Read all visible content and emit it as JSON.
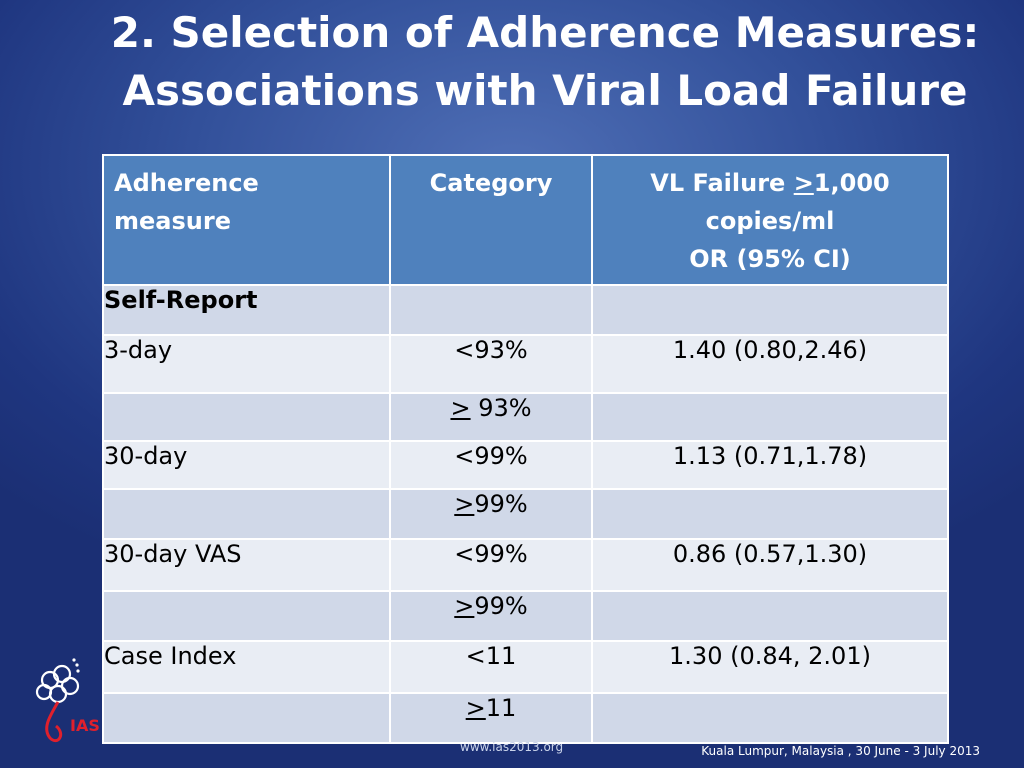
{
  "title": {
    "line1": "2. Selection of Adherence Measures:",
    "line2": "Associations with Viral Load Failure"
  },
  "table": {
    "headers": {
      "measure_l1": "Adherence",
      "measure_l2": "measure",
      "category": "Category",
      "vl_prefix": "VL Failure ",
      "vl_symbol": ">",
      "vl_value": "1,000",
      "vl_l2": "copies/ml",
      "vl_l3": "OR (95% CI)"
    },
    "section": "Self-Report",
    "rows": [
      {
        "measure": "3-day",
        "category": "<93%",
        "or": "1.40 (0.80,2.46)"
      },
      {
        "measure": "",
        "category_symbol": ">",
        "category_rest": " 93%",
        "or": ""
      },
      {
        "measure": "30-day",
        "category": "<99%",
        "or": "1.13 (0.71,1.78)"
      },
      {
        "measure": "",
        "category_symbol": ">",
        "category_rest": "99%",
        "or": ""
      },
      {
        "measure": "30-day VAS",
        "category": "<99%",
        "or": "0.86 (0.57,1.30)"
      },
      {
        "measure": "",
        "category_symbol": ">",
        "category_rest": "99%",
        "or": ""
      },
      {
        "measure": "Case Index",
        "category": "<11",
        "or": "1.30 (0.84, 2.01)"
      },
      {
        "measure": "",
        "category_symbol": ">",
        "category_rest": "11",
        "or": ""
      }
    ]
  },
  "logo": {
    "text": "IAS",
    "color": "#e0202c"
  },
  "footer": {
    "website": "www.ias2013.org",
    "location": "Kuala Lumpur, Malaysia , 30 June - 3 July 2013"
  }
}
